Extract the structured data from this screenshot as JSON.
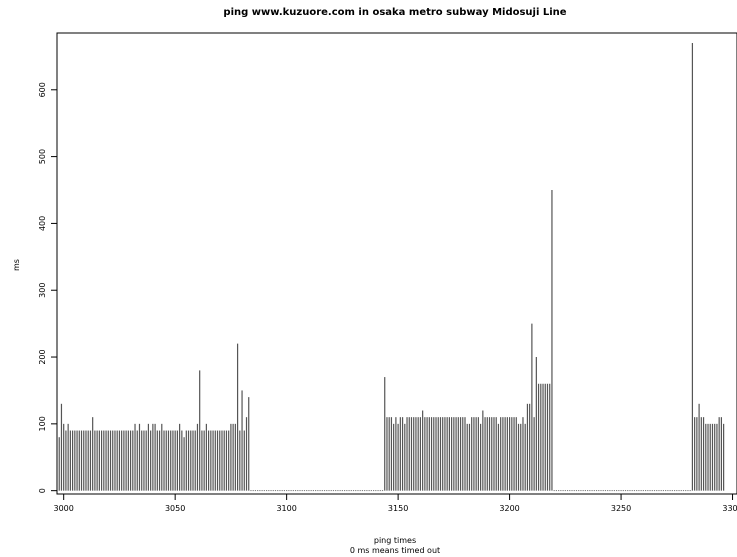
{
  "chart_data": {
    "type": "bar",
    "title": "ping www.kuzuore.com in osaka metro subway Midosuji Line",
    "xlabel": "ping times",
    "xlabel_note": "0 ms means timed out",
    "ylabel": "ms",
    "xlim": [
      2997,
      3302
    ],
    "ylim": [
      -5,
      685
    ],
    "x_ticks": [
      3000,
      3050,
      3100,
      3150,
      3200,
      3250,
      3300
    ],
    "y_ticks": [
      0,
      100,
      200,
      300,
      400,
      500,
      600
    ],
    "grid": false,
    "legend": "none",
    "colors": {
      "bar": "#555555",
      "axis": "#000000"
    },
    "x_start": 2998,
    "values": [
      80,
      130,
      100,
      90,
      100,
      90,
      90,
      90,
      90,
      90,
      90,
      90,
      90,
      90,
      90,
      110,
      90,
      90,
      90,
      90,
      90,
      90,
      90,
      90,
      90,
      90,
      90,
      90,
      90,
      90,
      90,
      90,
      90,
      90,
      100,
      90,
      100,
      90,
      90,
      90,
      100,
      90,
      100,
      100,
      90,
      90,
      100,
      90,
      90,
      90,
      90,
      90,
      90,
      90,
      100,
      90,
      80,
      90,
      90,
      90,
      90,
      90,
      100,
      180,
      90,
      90,
      100,
      90,
      90,
      90,
      90,
      90,
      90,
      90,
      90,
      90,
      90,
      100,
      100,
      100,
      220,
      90,
      150,
      90,
      110,
      140,
      0,
      0,
      0,
      0,
      0,
      0,
      0,
      0,
      0,
      0,
      0,
      0,
      0,
      0,
      0,
      0,
      0,
      0,
      0,
      0,
      0,
      0,
      0,
      0,
      0,
      0,
      0,
      0,
      0,
      0,
      0,
      0,
      0,
      0,
      0,
      0,
      0,
      0,
      0,
      0,
      0,
      0,
      0,
      0,
      0,
      0,
      0,
      0,
      0,
      0,
      0,
      0,
      0,
      0,
      0,
      0,
      0,
      0,
      0,
      0,
      170,
      110,
      110,
      110,
      100,
      110,
      100,
      110,
      110,
      100,
      110,
      110,
      110,
      110,
      110,
      110,
      110,
      120,
      110,
      110,
      110,
      110,
      110,
      110,
      110,
      110,
      110,
      110,
      110,
      110,
      110,
      110,
      110,
      110,
      110,
      110,
      110,
      100,
      100,
      110,
      110,
      110,
      110,
      100,
      120,
      110,
      110,
      110,
      110,
      110,
      110,
      100,
      110,
      110,
      110,
      110,
      110,
      110,
      110,
      110,
      100,
      100,
      110,
      100,
      130,
      130,
      250,
      110,
      200,
      160,
      160,
      160,
      160,
      160,
      160,
      450,
      0,
      0,
      0,
      0,
      0,
      0,
      0,
      0,
      0,
      0,
      0,
      0,
      0,
      0,
      0,
      0,
      0,
      0,
      0,
      0,
      0,
      0,
      0,
      0,
      0,
      0,
      0,
      0,
      0,
      0,
      0,
      0,
      0,
      0,
      0,
      0,
      0,
      0,
      0,
      0,
      0,
      0,
      0,
      0,
      0,
      0,
      0,
      0,
      0,
      0,
      0,
      0,
      0,
      0,
      0,
      0,
      0,
      0,
      0,
      0,
      0,
      0,
      670,
      110,
      110,
      130,
      110,
      110,
      100,
      100,
      100,
      100,
      100,
      100,
      110,
      110,
      100
    ]
  }
}
